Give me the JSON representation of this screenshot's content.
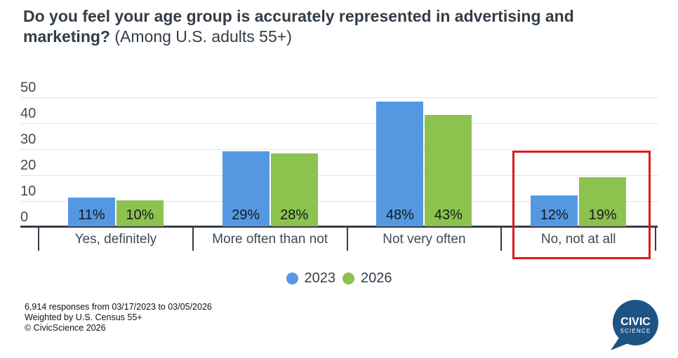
{
  "title": {
    "question": "Do you feel your age group is accurately represented in advertising and marketing?",
    "note": "(Among U.S. adults 55+)"
  },
  "chart_data": {
    "type": "bar",
    "categories": [
      "Yes, definitely",
      "More often than not",
      "Not very often",
      "No, not at all"
    ],
    "series": [
      {
        "name": "2023",
        "color": "#5598e2",
        "values": [
          11,
          29,
          48,
          12
        ]
      },
      {
        "name": "2026",
        "color": "#8cc24e",
        "values": [
          10,
          28,
          43,
          19
        ]
      }
    ],
    "value_suffix": "%",
    "ylim": [
      0,
      50
    ],
    "yticks": [
      0,
      10,
      20,
      30,
      40,
      50
    ],
    "grid": true,
    "legend_position": "bottom",
    "annotation": {
      "type": "highlight-box",
      "category": "No, not at all",
      "color": "#dc1a1a"
    }
  },
  "footer": {
    "line1": "6,914 responses from 03/17/2023 to 03/05/2026",
    "line2": "Weighted by U.S. Census 55+",
    "line3": "© CivicScience 2026"
  },
  "logo": {
    "line1": "CIVIC",
    "line2": "SCIENCE",
    "color": "#1e5484"
  },
  "colors": {
    "axis": "#363d47",
    "grid": "#e4e4e4",
    "text": "#404a56",
    "highlight": "#dc1a1a"
  }
}
